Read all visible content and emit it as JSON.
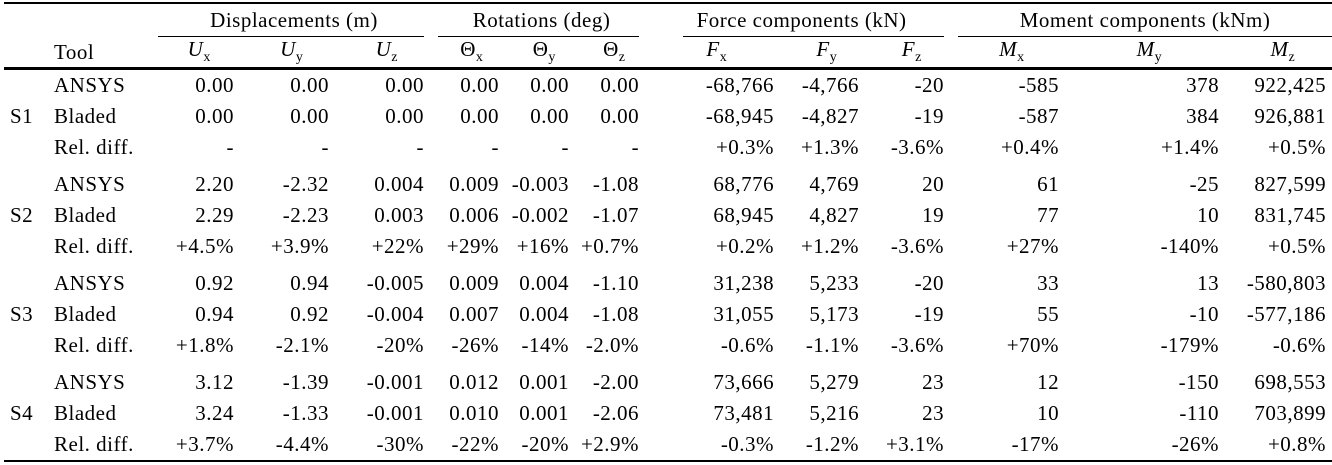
{
  "table": {
    "groups": [
      {
        "label": "Displacements (m)"
      },
      {
        "label": "Rotations (deg)"
      },
      {
        "label": "Force components (kN)"
      },
      {
        "label": "Moment components (kNm)"
      }
    ],
    "tool_header": "Tool",
    "columns": [
      {
        "letter": "U",
        "sub": "x"
      },
      {
        "letter": "U",
        "sub": "y"
      },
      {
        "letter": "U",
        "sub": "z"
      },
      {
        "letter": "Θ",
        "sub": "x"
      },
      {
        "letter": "Θ",
        "sub": "y"
      },
      {
        "letter": "Θ",
        "sub": "z"
      },
      {
        "letter": "F",
        "sub": "x"
      },
      {
        "letter": "F",
        "sub": "y"
      },
      {
        "letter": "F",
        "sub": "z"
      },
      {
        "letter": "M",
        "sub": "x"
      },
      {
        "letter": "M",
        "sub": "y"
      },
      {
        "letter": "M",
        "sub": "z"
      }
    ],
    "blocks": [
      {
        "case": "S1",
        "rows": [
          {
            "tool": "ANSYS",
            "values": [
              "0.00",
              "0.00",
              "0.00",
              "0.00",
              "0.00",
              "0.00",
              "-68,766",
              "-4,766",
              "-20",
              "-585",
              "378",
              "922,425"
            ]
          },
          {
            "tool": "Bladed",
            "values": [
              "0.00",
              "0.00",
              "0.00",
              "0.00",
              "0.00",
              "0.00",
              "-68,945",
              "-4,827",
              "-19",
              "-587",
              "384",
              "926,881"
            ]
          },
          {
            "tool": "Rel. diff.",
            "values": [
              "-",
              "-",
              "-",
              "-",
              "-",
              "-",
              "+0.3%",
              "+1.3%",
              "-3.6%",
              "+0.4%",
              "+1.4%",
              "+0.5%"
            ]
          }
        ]
      },
      {
        "case": "S2",
        "rows": [
          {
            "tool": "ANSYS",
            "values": [
              "2.20",
              "-2.32",
              "0.004",
              "0.009",
              "-0.003",
              "-1.08",
              "68,776",
              "4,769",
              "20",
              "61",
              "-25",
              "827,599"
            ]
          },
          {
            "tool": "Bladed",
            "values": [
              "2.29",
              "-2.23",
              "0.003",
              "0.006",
              "-0.002",
              "-1.07",
              "68,945",
              "4,827",
              "19",
              "77",
              "10",
              "831,745"
            ]
          },
          {
            "tool": "Rel. diff.",
            "values": [
              "+4.5%",
              "+3.9%",
              "+22%",
              "+29%",
              "+16%",
              "+0.7%",
              "+0.2%",
              "+1.2%",
              "-3.6%",
              "+27%",
              "-140%",
              "+0.5%"
            ]
          }
        ]
      },
      {
        "case": "S3",
        "rows": [
          {
            "tool": "ANSYS",
            "values": [
              "0.92",
              "0.94",
              "-0.005",
              "0.009",
              "0.004",
              "-1.10",
              "31,238",
              "5,233",
              "-20",
              "33",
              "13",
              "-580,803"
            ]
          },
          {
            "tool": "Bladed",
            "values": [
              "0.94",
              "0.92",
              "-0.004",
              "0.007",
              "0.004",
              "-1.08",
              "31,055",
              "5,173",
              "-19",
              "55",
              "-10",
              "-577,186"
            ]
          },
          {
            "tool": "Rel. diff.",
            "values": [
              "+1.8%",
              "-2.1%",
              "-20%",
              "-26%",
              "-14%",
              "-2.0%",
              "-0.6%",
              "-1.1%",
              "-3.6%",
              "+70%",
              "-179%",
              "-0.6%"
            ]
          }
        ]
      },
      {
        "case": "S4",
        "rows": [
          {
            "tool": "ANSYS",
            "values": [
              "3.12",
              "-1.39",
              "-0.001",
              "0.012",
              "0.001",
              "-2.00",
              "73,666",
              "5,279",
              "23",
              "12",
              "-150",
              "698,553"
            ]
          },
          {
            "tool": "Bladed",
            "values": [
              "3.24",
              "-1.33",
              "-0.001",
              "0.010",
              "0.001",
              "-2.06",
              "73,481",
              "5,216",
              "23",
              "10",
              "-110",
              "703,899"
            ]
          },
          {
            "tool": "Rel. diff.",
            "values": [
              "+3.7%",
              "-4.4%",
              "-30%",
              "-22%",
              "-20%",
              "+2.9%",
              "-0.3%",
              "-1.2%",
              "+3.1%",
              "-17%",
              "-26%",
              "+0.8%"
            ]
          }
        ]
      }
    ]
  },
  "colors": {
    "text": "#000000",
    "background": "#ffffff",
    "rule": "#000000"
  }
}
